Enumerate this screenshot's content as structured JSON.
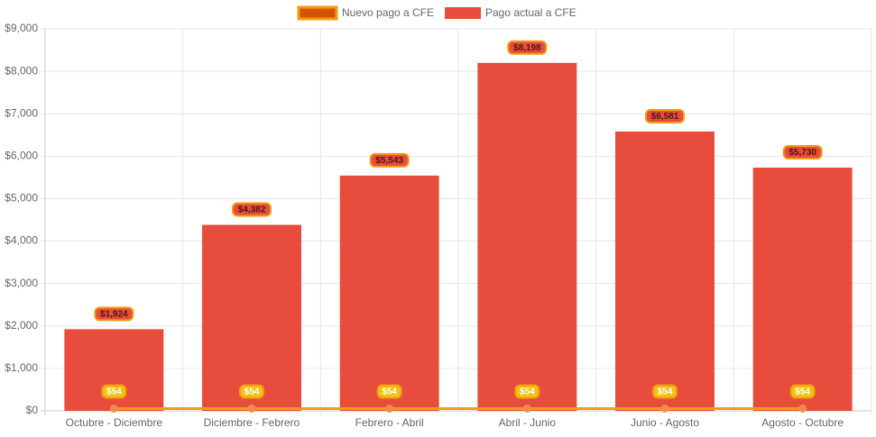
{
  "chart_data": {
    "type": "bar",
    "categories": [
      "Octubre - Diciembre",
      "Diciembre - Febrero",
      "Febrero - Abril",
      "Abril - Junio",
      "Junio - Agosto",
      "Agosto - Octubre"
    ],
    "series": [
      {
        "name": "Nuevo pago a CFE",
        "kind": "line",
        "values": [
          54,
          54,
          54,
          54,
          54,
          54
        ],
        "labels": [
          "$54",
          "$54",
          "$54",
          "$54",
          "$54",
          "$54"
        ],
        "color": "#f39c12",
        "fill_color": "#d35400"
      },
      {
        "name": "Pago actual a CFE",
        "kind": "bar",
        "values": [
          1924,
          4382,
          5543,
          8198,
          6581,
          5730
        ],
        "labels": [
          "$1,924",
          "$4,382",
          "$5,543",
          "$8,198",
          "$6,581",
          "$5,730"
        ],
        "color": "#e74c3c"
      }
    ],
    "yticks": [
      "$0",
      "$1,000",
      "$2,000",
      "$3,000",
      "$4,000",
      "$5,000",
      "$6,000",
      "$7,000",
      "$8,000",
      "$9,000"
    ],
    "ylim": [
      0,
      9000
    ],
    "title": "",
    "xlabel": "",
    "ylabel": "",
    "grid": true,
    "legend_position": "top-center"
  }
}
